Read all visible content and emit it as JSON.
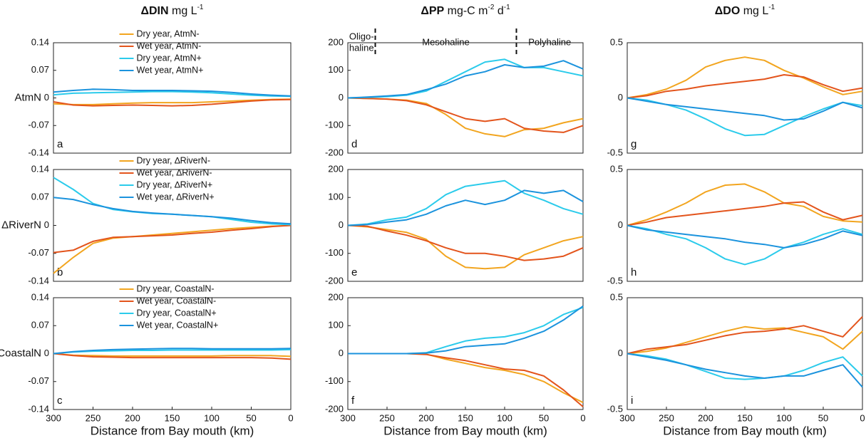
{
  "chart_data": [
    {
      "type": "line",
      "label": "a",
      "ylabel": "AtmN",
      "legend": "top-center",
      "title_parts": [
        {
          "text": "ΔDIN",
          "bold": true
        },
        {
          "text": " mg L"
        },
        {
          "text": "-1",
          "sup": true
        }
      ],
      "xlim": [
        300,
        0
      ],
      "ylim": [
        -0.14,
        0.14
      ],
      "yticks": [
        0.14,
        0.07,
        0,
        -0.07,
        -0.14
      ],
      "x": [
        300,
        275,
        250,
        225,
        200,
        175,
        150,
        125,
        100,
        75,
        50,
        25,
        0
      ],
      "series": [
        {
          "name": "Dry year, AtmN-",
          "color": "#f2a51f",
          "values": [
            -0.015,
            -0.017,
            -0.017,
            -0.015,
            -0.013,
            -0.012,
            -0.012,
            -0.012,
            -0.01,
            -0.008,
            -0.006,
            -0.004,
            -0.003
          ]
        },
        {
          "name": "Wet year, AtmN-",
          "color": "#e3541c",
          "values": [
            -0.01,
            -0.018,
            -0.02,
            -0.019,
            -0.018,
            -0.019,
            -0.02,
            -0.019,
            -0.016,
            -0.012,
            -0.008,
            -0.005,
            -0.004
          ]
        },
        {
          "name": "Dry year, AtmN+",
          "color": "#2bcbeb",
          "values": [
            0.008,
            0.012,
            0.013,
            0.014,
            0.015,
            0.016,
            0.016,
            0.015,
            0.013,
            0.01,
            0.007,
            0.005,
            0.004
          ]
        },
        {
          "name": "Wet year, AtmN+",
          "color": "#1b93dd",
          "values": [
            0.015,
            0.019,
            0.022,
            0.021,
            0.019,
            0.019,
            0.019,
            0.018,
            0.017,
            0.014,
            0.01,
            0.007,
            0.005
          ]
        }
      ]
    },
    {
      "type": "line",
      "label": "b",
      "ylabel": "ΔRiverN",
      "legend": "top-center",
      "xlim": [
        300,
        0
      ],
      "ylim": [
        -0.14,
        0.14
      ],
      "yticks": [
        0.14,
        0.07,
        0,
        -0.07,
        -0.14
      ],
      "x": [
        300,
        275,
        250,
        225,
        200,
        175,
        150,
        125,
        100,
        75,
        50,
        25,
        0
      ],
      "series": [
        {
          "name": "Dry year, ∆RiverN-",
          "color": "#f2a51f",
          "values": [
            -0.12,
            -0.08,
            -0.045,
            -0.032,
            -0.028,
            -0.024,
            -0.02,
            -0.016,
            -0.012,
            -0.008,
            -0.005,
            -0.002,
            0
          ]
        },
        {
          "name": "Wet year, ∆RiverN-",
          "color": "#e3541c",
          "values": [
            -0.068,
            -0.062,
            -0.04,
            -0.03,
            -0.028,
            -0.026,
            -0.024,
            -0.02,
            -0.017,
            -0.012,
            -0.008,
            -0.003,
            0
          ]
        },
        {
          "name": "Dry year, ∆RiverN+",
          "color": "#2bcbeb",
          "values": [
            0.12,
            0.09,
            0.055,
            0.04,
            0.034,
            0.03,
            0.028,
            0.025,
            0.022,
            0.015,
            0.008,
            0.004,
            0.002
          ]
        },
        {
          "name": "Wet year, ∆RiverN+",
          "color": "#1b93dd",
          "values": [
            0.07,
            0.065,
            0.052,
            0.042,
            0.035,
            0.031,
            0.028,
            0.025,
            0.022,
            0.018,
            0.012,
            0.007,
            0.004
          ]
        }
      ]
    },
    {
      "type": "line",
      "label": "c",
      "ylabel": "CoastalN",
      "legend": "top-center",
      "xlabel": "Distance from Bay mouth (km)",
      "xlim": [
        300,
        0
      ],
      "xticks": [
        300,
        250,
        200,
        150,
        100,
        50,
        0
      ],
      "ylim": [
        -0.14,
        0.14
      ],
      "yticks": [
        0.14,
        0.07,
        0,
        -0.07,
        -0.14
      ],
      "x": [
        300,
        275,
        250,
        225,
        200,
        175,
        150,
        125,
        100,
        75,
        50,
        25,
        0
      ],
      "series": [
        {
          "name": "Dry year, CoastalN-",
          "color": "#f2a51f",
          "values": [
            0,
            -0.004,
            -0.005,
            -0.006,
            -0.006,
            -0.006,
            -0.006,
            -0.006,
            -0.006,
            -0.005,
            -0.005,
            -0.005,
            -0.007
          ]
        },
        {
          "name": "Wet year, CoastalN-",
          "color": "#e3541c",
          "values": [
            0,
            -0.005,
            -0.008,
            -0.009,
            -0.01,
            -0.01,
            -0.01,
            -0.01,
            -0.01,
            -0.01,
            -0.01,
            -0.011,
            -0.014
          ]
        },
        {
          "name": "Dry year, CoastalN+",
          "color": "#2bcbeb",
          "values": [
            0,
            0.004,
            0.006,
            0.007,
            0.008,
            0.008,
            0.009,
            0.009,
            0.009,
            0.009,
            0.009,
            0.009,
            0.01
          ]
        },
        {
          "name": "Wet year, CoastalN+",
          "color": "#1b93dd",
          "values": [
            0,
            0.005,
            0.008,
            0.01,
            0.011,
            0.012,
            0.013,
            0.013,
            0.012,
            0.012,
            0.012,
            0.012,
            0.013
          ]
        }
      ]
    },
    {
      "type": "line",
      "label": "d",
      "title_parts": [
        {
          "text": "ΔPP",
          "bold": true
        },
        {
          "text": " mg-C m"
        },
        {
          "text": "-2",
          "sup": true
        },
        {
          "text": " d"
        },
        {
          "text": "-1",
          "sup": true
        }
      ],
      "zone_bounds": [
        265,
        85
      ],
      "zones": [
        [
          "Oligo-",
          "haline"
        ],
        [
          "Mesohaline"
        ],
        [
          "Polyhaline"
        ]
      ],
      "xlim": [
        300,
        0
      ],
      "ylim": [
        -200,
        200
      ],
      "yticks": [
        200,
        100,
        0,
        -100,
        -200
      ],
      "x": [
        300,
        275,
        250,
        225,
        200,
        175,
        150,
        125,
        100,
        75,
        50,
        25,
        0
      ],
      "series": [
        {
          "color": "#f2a51f",
          "values": [
            0,
            -2,
            -4,
            -8,
            -20,
            -60,
            -110,
            -130,
            -140,
            -115,
            -110,
            -90,
            -75
          ]
        },
        {
          "color": "#e3541c",
          "values": [
            0,
            -2,
            -4,
            -10,
            -25,
            -50,
            -75,
            -85,
            -75,
            -110,
            -120,
            -125,
            -100
          ]
        },
        {
          "color": "#2bcbeb",
          "values": [
            0,
            2,
            5,
            10,
            25,
            60,
            95,
            130,
            140,
            110,
            110,
            95,
            80
          ]
        },
        {
          "color": "#1b93dd",
          "values": [
            0,
            3,
            7,
            12,
            30,
            50,
            80,
            95,
            120,
            110,
            115,
            135,
            105
          ]
        }
      ]
    },
    {
      "type": "line",
      "label": "e",
      "xlim": [
        300,
        0
      ],
      "ylim": [
        -200,
        200
      ],
      "yticks": [
        200,
        100,
        0,
        -100,
        -200
      ],
      "x": [
        300,
        275,
        250,
        225,
        200,
        175,
        150,
        125,
        100,
        75,
        50,
        25,
        0
      ],
      "series": [
        {
          "color": "#f2a51f",
          "values": [
            0,
            -5,
            -15,
            -25,
            -50,
            -110,
            -150,
            -155,
            -150,
            -105,
            -80,
            -55,
            -40
          ]
        },
        {
          "color": "#e3541c",
          "values": [
            0,
            -3,
            -20,
            -35,
            -55,
            -80,
            -100,
            -100,
            -110,
            -125,
            -120,
            -110,
            -80
          ]
        },
        {
          "color": "#2bcbeb",
          "values": [
            0,
            5,
            20,
            30,
            60,
            110,
            140,
            150,
            160,
            115,
            90,
            60,
            40
          ]
        },
        {
          "color": "#1b93dd",
          "values": [
            0,
            3,
            12,
            20,
            40,
            70,
            90,
            75,
            90,
            125,
            115,
            125,
            85
          ]
        }
      ]
    },
    {
      "type": "line",
      "label": "f",
      "xlabel": "Distance from Bay mouth (km)",
      "xlim": [
        300,
        0
      ],
      "xticks": [
        300,
        250,
        200,
        150,
        100,
        50,
        0
      ],
      "ylim": [
        -200,
        200
      ],
      "yticks": [
        200,
        100,
        0,
        -100,
        -200
      ],
      "x": [
        300,
        275,
        250,
        225,
        200,
        175,
        150,
        125,
        100,
        75,
        50,
        25,
        0
      ],
      "series": [
        {
          "color": "#f2a51f",
          "values": [
            0,
            0,
            0,
            0,
            -2,
            -20,
            -35,
            -50,
            -60,
            -75,
            -100,
            -140,
            -175
          ]
        },
        {
          "color": "#e3541c",
          "values": [
            0,
            0,
            0,
            0,
            -3,
            -15,
            -25,
            -40,
            -55,
            -60,
            -80,
            -130,
            -190
          ]
        },
        {
          "color": "#2bcbeb",
          "values": [
            0,
            0,
            0,
            0,
            3,
            25,
            45,
            55,
            60,
            75,
            100,
            140,
            165
          ]
        },
        {
          "color": "#1b93dd",
          "values": [
            0,
            0,
            0,
            0,
            2,
            10,
            25,
            30,
            35,
            55,
            80,
            120,
            170
          ]
        }
      ]
    },
    {
      "type": "line",
      "label": "g",
      "title_parts": [
        {
          "text": "ΔDO",
          "bold": true
        },
        {
          "text": " mg L"
        },
        {
          "text": "-1",
          "sup": true
        }
      ],
      "xlim": [
        300,
        0
      ],
      "ylim": [
        -0.5,
        0.5
      ],
      "yticks": [
        0.5,
        0,
        -0.5
      ],
      "x": [
        300,
        275,
        250,
        225,
        200,
        175,
        150,
        125,
        100,
        75,
        50,
        25,
        0
      ],
      "series": [
        {
          "color": "#f2a51f",
          "values": [
            0,
            0.03,
            0.08,
            0.16,
            0.28,
            0.34,
            0.37,
            0.34,
            0.25,
            0.18,
            0.1,
            0.03,
            0.06
          ]
        },
        {
          "color": "#e3541c",
          "values": [
            0,
            0.02,
            0.06,
            0.08,
            0.11,
            0.13,
            0.15,
            0.17,
            0.21,
            0.19,
            0.12,
            0.06,
            0.09
          ]
        },
        {
          "color": "#2bcbeb",
          "values": [
            0,
            -0.02,
            -0.06,
            -0.11,
            -0.19,
            -0.28,
            -0.34,
            -0.33,
            -0.25,
            -0.17,
            -0.1,
            -0.04,
            -0.07
          ]
        },
        {
          "color": "#1b93dd",
          "values": [
            0,
            -0.03,
            -0.06,
            -0.08,
            -0.1,
            -0.12,
            -0.14,
            -0.16,
            -0.2,
            -0.19,
            -0.12,
            -0.04,
            -0.09
          ]
        }
      ]
    },
    {
      "type": "line",
      "label": "h",
      "xlim": [
        300,
        0
      ],
      "ylim": [
        -0.5,
        0.5
      ],
      "yticks": [
        0.5,
        0,
        -0.5
      ],
      "x": [
        300,
        275,
        250,
        225,
        200,
        175,
        150,
        125,
        100,
        75,
        50,
        25,
        0
      ],
      "series": [
        {
          "color": "#f2a51f",
          "values": [
            0,
            0.05,
            0.12,
            0.2,
            0.3,
            0.36,
            0.37,
            0.3,
            0.2,
            0.17,
            0.08,
            0.04,
            0.03
          ]
        },
        {
          "color": "#e3541c",
          "values": [
            0,
            0.03,
            0.07,
            0.09,
            0.11,
            0.13,
            0.15,
            0.17,
            0.2,
            0.21,
            0.12,
            0.05,
            0.09
          ]
        },
        {
          "color": "#2bcbeb",
          "values": [
            0,
            -0.03,
            -0.08,
            -0.12,
            -0.2,
            -0.3,
            -0.35,
            -0.3,
            -0.2,
            -0.15,
            -0.08,
            -0.03,
            -0.08
          ]
        },
        {
          "color": "#1b93dd",
          "values": [
            0,
            -0.04,
            -0.06,
            -0.08,
            -0.1,
            -0.12,
            -0.15,
            -0.17,
            -0.2,
            -0.17,
            -0.12,
            -0.05,
            -0.09
          ]
        }
      ]
    },
    {
      "type": "line",
      "label": "i",
      "xlabel": "Distance from Bay mouth (km)",
      "xlim": [
        300,
        0
      ],
      "xticks": [
        300,
        250,
        200,
        150,
        100,
        50,
        0
      ],
      "ylim": [
        -0.5,
        0.5
      ],
      "yticks": [
        0.5,
        0,
        -0.5
      ],
      "x": [
        300,
        275,
        250,
        225,
        200,
        175,
        150,
        125,
        100,
        75,
        50,
        25,
        0
      ],
      "series": [
        {
          "color": "#f2a51f",
          "values": [
            0,
            0.02,
            0.05,
            0.1,
            0.15,
            0.2,
            0.24,
            0.22,
            0.23,
            0.19,
            0.15,
            0.04,
            0.2
          ]
        },
        {
          "color": "#e3541c",
          "values": [
            0,
            0.04,
            0.06,
            0.08,
            0.12,
            0.16,
            0.19,
            0.2,
            0.22,
            0.25,
            0.2,
            0.15,
            0.33
          ]
        },
        {
          "color": "#2bcbeb",
          "values": [
            0,
            -0.02,
            -0.05,
            -0.1,
            -0.16,
            -0.22,
            -0.23,
            -0.22,
            -0.2,
            -0.15,
            -0.08,
            -0.03,
            -0.2
          ]
        },
        {
          "color": "#1b93dd",
          "values": [
            0,
            -0.03,
            -0.06,
            -0.1,
            -0.14,
            -0.17,
            -0.2,
            -0.22,
            -0.2,
            -0.2,
            -0.15,
            -0.1,
            -0.3
          ]
        }
      ]
    }
  ]
}
